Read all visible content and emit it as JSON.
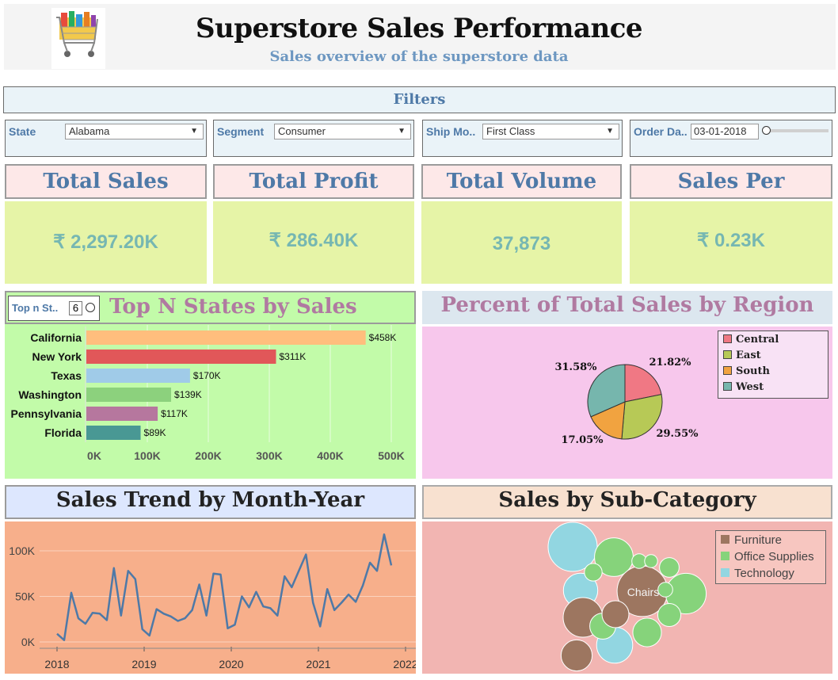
{
  "header": {
    "title": "Superstore Sales Performance",
    "subtitle": "Sales overview of the superstore data"
  },
  "filters": {
    "title": "Filters",
    "state": {
      "label": "State",
      "value": "Alabama"
    },
    "segment": {
      "label": "Segment",
      "value": "Consumer"
    },
    "ship_mode": {
      "label": "Ship Mo..",
      "value": "First Class"
    },
    "order_date": {
      "label": "Order Da..",
      "value": "03-01-2018"
    }
  },
  "kpis": [
    {
      "title": "Total Sales",
      "value": "₹ 2,297.20K"
    },
    {
      "title": "Total Profit",
      "value": "₹ 286.40K"
    },
    {
      "title": "Total Volume",
      "value": "37,873"
    },
    {
      "title": "Sales Per Customer",
      "value": "₹ 0.23K"
    }
  ],
  "top_n": {
    "label": "Top n St..",
    "value": "6"
  },
  "colors": {
    "accent": "#4e79a7",
    "central": "#f07884",
    "east": "#b7c956",
    "south": "#f1a340",
    "west": "#76b6ad",
    "furniture": "#9d7660",
    "office_supplies": "#86d37b",
    "technology": "#92d6e1"
  },
  "chart_data": [
    {
      "type": "bar",
      "title": "Top N States by Sales",
      "categories": [
        "California",
        "New York",
        "Texas",
        "Washington",
        "Pennsylvania",
        "Florida"
      ],
      "values": [
        458,
        311,
        170,
        139,
        117,
        89
      ],
      "data_labels": [
        "$458K",
        "$311K",
        "$170K",
        "$139K",
        "$117K",
        "$89K"
      ],
      "bar_colors": [
        "#ffbe7d",
        "#e15759",
        "#a0cbe8",
        "#8cd17d",
        "#b6779e",
        "#499894"
      ],
      "xticks": [
        "0K",
        "100K",
        "200K",
        "300K",
        "400K",
        "500K"
      ],
      "xlim": [
        0,
        500
      ],
      "orientation": "horizontal"
    },
    {
      "type": "pie",
      "title": "Percent of Total Sales by Region",
      "labels": [
        "Central",
        "East",
        "South",
        "West"
      ],
      "values": [
        21.82,
        29.55,
        17.05,
        31.58
      ],
      "data_labels": [
        "21.82%",
        "29.55%",
        "17.05%",
        "31.58%"
      ],
      "legend": "top-right"
    },
    {
      "type": "line",
      "title": "Sales Trend by Month-Year",
      "x_ticks": [
        "2018",
        "2019",
        "2020",
        "2021",
        "2022"
      ],
      "y_ticks": [
        "0K",
        "50K",
        "100K"
      ],
      "ylim": [
        0,
        120000
      ],
      "grid": true,
      "values": [
        9000,
        2000,
        54000,
        26000,
        20000,
        32000,
        31000,
        24000,
        81000,
        29000,
        78000,
        69000,
        14000,
        7000,
        36000,
        31000,
        28000,
        23000,
        26000,
        35000,
        63000,
        29000,
        75000,
        74000,
        15000,
        19000,
        50000,
        38000,
        55000,
        39000,
        37000,
        29000,
        72000,
        60000,
        78000,
        96000,
        43000,
        17000,
        58000,
        35000,
        43000,
        52000,
        44000,
        62000,
        87000,
        78000,
        118000,
        84000
      ]
    },
    {
      "type": "bubble",
      "title": "Sales by Sub-Category",
      "legend": [
        "Furniture",
        "Office Supplies",
        "Technology"
      ],
      "legend_placement": "top-right",
      "annotation": "Chairs",
      "bubbles": [
        {
          "category": "Technology",
          "value": 1
        },
        {
          "category": "Office Supplies",
          "value": 0.62
        },
        {
          "category": "Furniture",
          "value": 1.06
        },
        {
          "category": "Office Supplies",
          "value": 0.68
        },
        {
          "category": "Technology",
          "value": 0.49
        },
        {
          "category": "Furniture",
          "value": 0.65
        },
        {
          "category": "Technology",
          "value": 0.54
        },
        {
          "category": "Office Supplies",
          "value": 0.34
        },
        {
          "category": "Office Supplies",
          "value": 0.28
        },
        {
          "category": "Furniture",
          "value": 0.4
        },
        {
          "category": "Furniture",
          "value": 0.3
        },
        {
          "category": "Office Supplies",
          "value": 0.13
        },
        {
          "category": "Office Supplies",
          "value": 0.09
        },
        {
          "category": "Office Supplies",
          "value": 0.07
        },
        {
          "category": "Office Supplies",
          "value": 0.09
        },
        {
          "category": "Office Supplies",
          "value": 0.16
        },
        {
          "category": "Office Supplies",
          "value": 0.22
        }
      ]
    }
  ]
}
